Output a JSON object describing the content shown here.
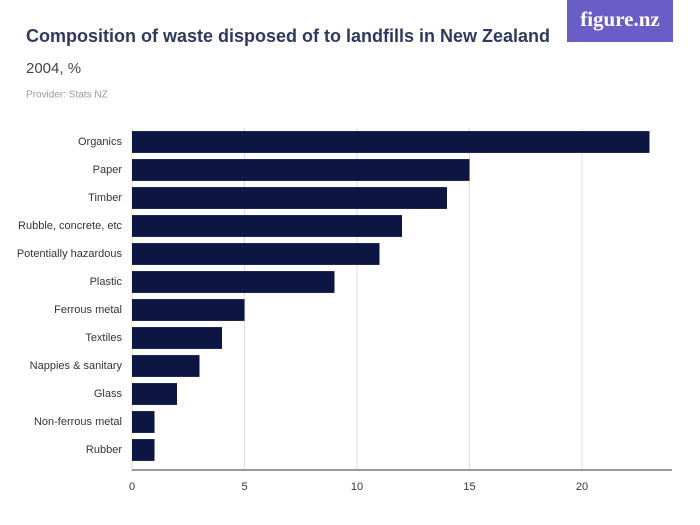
{
  "logo": "figure.nz",
  "chart_data": {
    "type": "bar",
    "orientation": "horizontal",
    "title": "Composition of waste disposed of to landfills in New Zealand",
    "subtitle": "2004, %",
    "provider": "Provider: Stats NZ",
    "categories": [
      "Organics",
      "Paper",
      "Timber",
      "Rubble, concrete, etc",
      "Potentially hazardous",
      "Plastic",
      "Ferrous metal",
      "Textiles",
      "Nappies & sanitary",
      "Glass",
      "Non-ferrous metal",
      "Rubber"
    ],
    "values": [
      23,
      15,
      14,
      12,
      11,
      9,
      5,
      4,
      3,
      2,
      1,
      1
    ],
    "color": "#0d1542",
    "xlim": [
      0,
      24
    ],
    "xticks": [
      0,
      5,
      10,
      15,
      20
    ],
    "grid": true
  }
}
